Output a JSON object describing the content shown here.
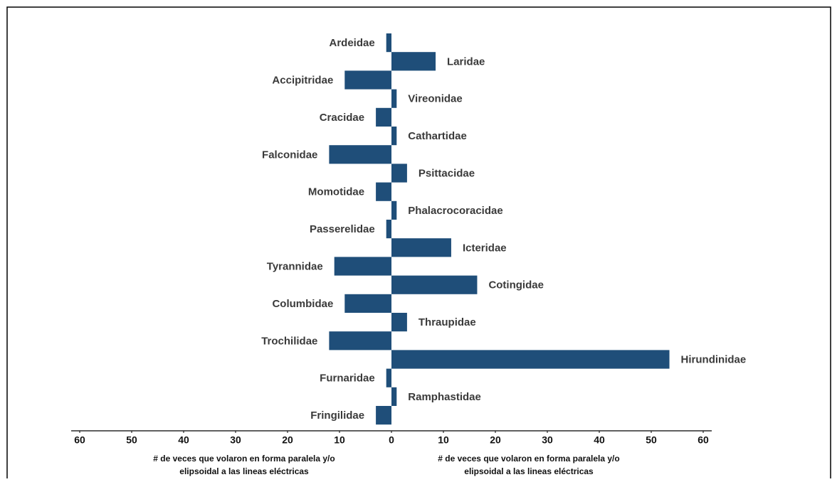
{
  "chart_data": {
    "type": "diverging-bar",
    "categories": [
      "Ardeidae",
      "Laridae",
      "Accipitridae",
      "Vireonidae",
      "Cracidae",
      "Cathartidae",
      "Falconidae",
      "Psittacidae",
      "Momotidae",
      "Phalacrocoracidae",
      "Passerelidae",
      "Icteridae",
      "Tyrannidae",
      "Cotingidae",
      "Columbidae",
      "Thraupidae",
      "Trochilidae",
      "Hirundinidae",
      "Furnaridae",
      "Ramphastidae",
      "Fringilidae"
    ],
    "values": [
      -1,
      8.5,
      -9,
      1,
      -3,
      1,
      -12,
      3,
      -3,
      1,
      -1,
      11.5,
      -11,
      16.5,
      -9,
      3,
      -12,
      53.5,
      -1,
      1,
      -3
    ],
    "color": "#1f4e79",
    "xlim": [
      -60,
      60
    ],
    "xticks": [
      {
        "value": -60,
        "label": "60"
      },
      {
        "value": -50,
        "label": "50"
      },
      {
        "value": -40,
        "label": "40"
      },
      {
        "value": -30,
        "label": "30"
      },
      {
        "value": -20,
        "label": "20"
      },
      {
        "value": -10,
        "label": "10"
      },
      0,
      10,
      20,
      30,
      40,
      50,
      60
    ],
    "x_labels": [
      [
        "# de veces que volaron en forma paralela y/o",
        "elipsoidal a las lineas eléctricas"
      ],
      [
        "# de veces que volaron en forma paralela y/o",
        "elipsoidal a las lineas eléctricas"
      ]
    ]
  }
}
